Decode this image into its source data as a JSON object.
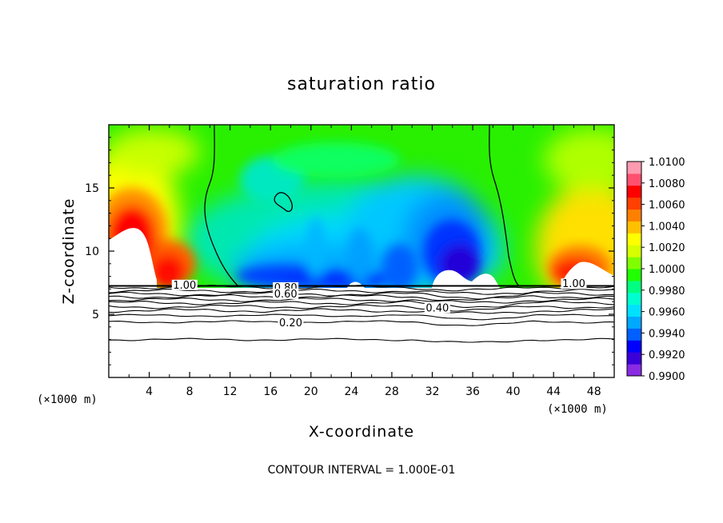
{
  "chart_data": {
    "type": "heatmap",
    "title": "saturation ratio",
    "xlabel": "X-coordinate",
    "ylabel": "Z-coordinate",
    "x_unit": "(×1000 m)",
    "x_unit_right": "(×1000 m)",
    "xlim": [
      0,
      50
    ],
    "ylim": [
      0,
      20
    ],
    "x_ticks": [
      4,
      8,
      12,
      16,
      20,
      24,
      28,
      32,
      36,
      40,
      44,
      48
    ],
    "x_tick_labels": [
      "4",
      "8",
      "12",
      "16",
      "20",
      "24",
      "28",
      "32",
      "36",
      "40",
      "44",
      "48"
    ],
    "y_ticks": [
      5,
      10,
      15
    ],
    "y_tick_labels": [
      "5",
      "10",
      "15"
    ],
    "colorbar": {
      "range": [
        0.99,
        1.01
      ],
      "tick_labels": [
        "1.0100",
        "1.0080",
        "1.0060",
        "1.0040",
        "1.0020",
        "1.0000",
        "0.9980",
        "0.9960",
        "0.9940",
        "0.9920",
        "0.9900"
      ],
      "colors": [
        "#8a2be2",
        "#3a00d8",
        "#0000ff",
        "#0060ff",
        "#00a8ff",
        "#00e0ff",
        "#00ffd0",
        "#00ff80",
        "#20ff00",
        "#80ff00",
        "#d8ff00",
        "#ffff00",
        "#ffc000",
        "#ff8000",
        "#ff4000",
        "#ff0000",
        "#ff5070",
        "#ff9ab0"
      ]
    },
    "contour_labels": [
      {
        "text": "1.00",
        "x": 7.5,
        "y": 7.1
      },
      {
        "text": "1.00",
        "x": 46.0,
        "y": 7.2
      },
      {
        "text": "0.80",
        "x": 17.5,
        "y": 6.9
      },
      {
        "text": "0.60",
        "x": 17.5,
        "y": 6.4
      },
      {
        "text": "0.40",
        "x": 32.5,
        "y": 5.3
      },
      {
        "text": "0.20",
        "x": 18.0,
        "y": 4.1
      }
    ],
    "contour_levels_lower": [
      7.15,
      6.85,
      6.6,
      6.4,
      6.15,
      5.9,
      5.6,
      5.3,
      4.9,
      4.4,
      3.0
    ],
    "cloud_free_white_blobs": [
      {
        "x": 2.5,
        "y": 9.5
      },
      {
        "x": 46.0,
        "y": 8.0
      },
      {
        "x": 33.0,
        "y": 7.9
      }
    ],
    "footer": "CONTOUR INTERVAL = 1.000E-01"
  }
}
